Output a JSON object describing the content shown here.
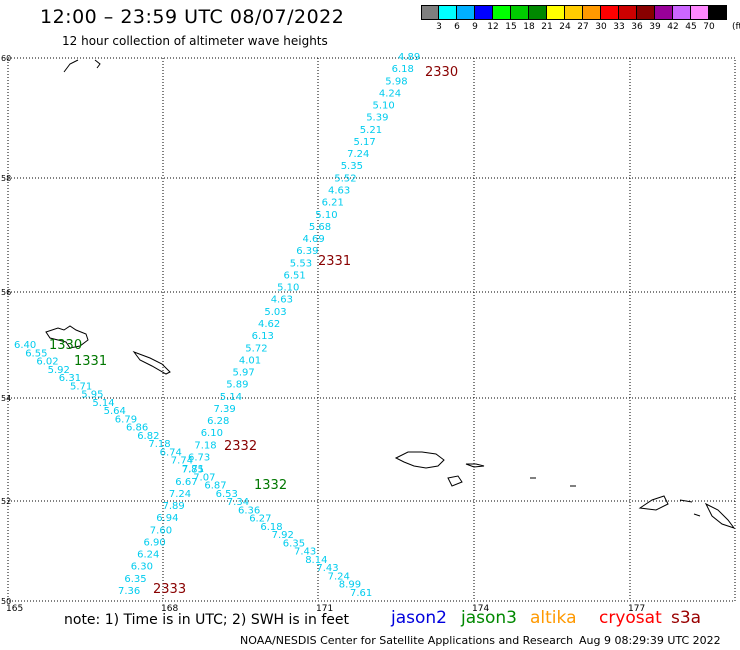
{
  "header": {
    "title": "12:00 – 23:59 UTC 08/07/2022",
    "subtitle": "12 hour collection of altimeter wave heights"
  },
  "legend": {
    "unit_label": "(ft)",
    "swatches": [
      {
        "label": "3",
        "color": "#7f7f7f"
      },
      {
        "label": "6",
        "color": "#00ffff"
      },
      {
        "label": "9",
        "color": "#00b0ff"
      },
      {
        "label": "12",
        "color": "#0000ff"
      },
      {
        "label": "15",
        "color": "#00ff00"
      },
      {
        "label": "18",
        "color": "#00cc00"
      },
      {
        "label": "21",
        "color": "#008800"
      },
      {
        "label": "24",
        "color": "#ffff00"
      },
      {
        "label": "27",
        "color": "#ffcc00"
      },
      {
        "label": "30",
        "color": "#ff9900"
      },
      {
        "label": "33",
        "color": "#ff0000"
      },
      {
        "label": "36",
        "color": "#cc0000"
      },
      {
        "label": "39",
        "color": "#880000"
      },
      {
        "label": "42",
        "color": "#990099"
      },
      {
        "label": "45",
        "color": "#cc66ff"
      },
      {
        "label": "70",
        "color": "#ff88ff"
      },
      {
        "label": "",
        "color": "#000000"
      }
    ]
  },
  "map": {
    "longitude_ticks": [
      "165",
      "168",
      "171",
      "174",
      "177"
    ],
    "latitude_ticks": [
      "60",
      "58",
      "56",
      "54",
      "52",
      "50"
    ],
    "track_color": "#00ccee",
    "label_colors": {
      "cryosat": "#880000",
      "jason3": "#007700"
    },
    "tracks": [
      {
        "name": "track-2330-2333",
        "heights": [
          "4.89",
          "6.18",
          "5.98",
          "4.24",
          "5.10",
          "5.39",
          "5.21",
          "5.17",
          "7.24",
          "5.35",
          "5.52",
          "4.63",
          "6.21",
          "5.10",
          "5.68",
          "4.69",
          "6.39",
          "5.53",
          "6.51",
          "5.10",
          "4.63",
          "5.03",
          "4.62",
          "6.13",
          "5.72",
          "4.01",
          "5.97",
          "5.89",
          "5.14",
          "7.39",
          "6.28",
          "6.10",
          "7.18",
          "6.73",
          "7.85",
          "6.67",
          "7.24",
          "7.89",
          "6.94",
          "7.60",
          "6.90",
          "6.24",
          "6.30",
          "6.35",
          "7.36"
        ]
      },
      {
        "name": "track-1330-1332",
        "heights": [
          "6.40",
          "6.55",
          "6.02",
          "5.92",
          "6.31",
          "5.71",
          "5.95",
          "5.14",
          "5.64",
          "6.79",
          "6.86",
          "6.82",
          "7.18",
          "6.74",
          "7.74",
          "7.71",
          "7.07",
          "6.87",
          "6.53",
          "7.34",
          "6.36",
          "6.27",
          "6.18",
          "7.92",
          "6.35",
          "7.43",
          "8.14",
          "7.43",
          "7.24",
          "8.99",
          "7.61"
        ]
      }
    ],
    "time_labels": [
      {
        "text": "2330",
        "sat": "cryosat"
      },
      {
        "text": "2331",
        "sat": "cryosat"
      },
      {
        "text": "2332",
        "sat": "cryosat"
      },
      {
        "text": "2333",
        "sat": "cryosat"
      },
      {
        "text": "1330",
        "sat": "jason3"
      },
      {
        "text": "1331",
        "sat": "jason3"
      },
      {
        "text": "1332",
        "sat": "jason3"
      }
    ]
  },
  "footer": {
    "note": "note: 1) Time is in UTC; 2) SWH is in feet",
    "satellites": [
      {
        "name": "jason2",
        "color": "#0000dd"
      },
      {
        "name": "jason3",
        "color": "#008800"
      },
      {
        "name": "altika",
        "color": "#ff9900"
      },
      {
        "name": "cryosat",
        "color": "#ff0000"
      },
      {
        "name": "s3a",
        "color": "#990000"
      }
    ],
    "credit": "NOAA/NESDIS Center for Satellite Applications and Research",
    "timestamp": "Aug  9 08:29:39 UTC 2022"
  }
}
